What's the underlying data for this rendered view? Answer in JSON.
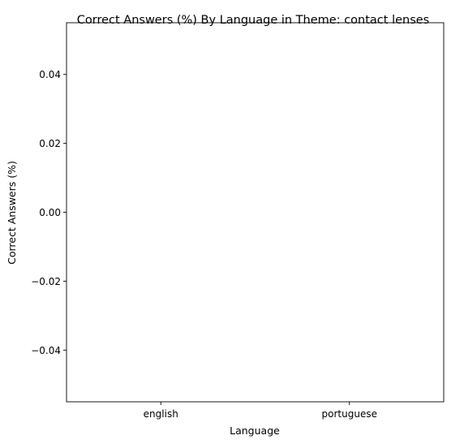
{
  "chart_data": {
    "type": "bar",
    "title": "Correct Answers (%) By Language in Theme: contact lenses",
    "xlabel": "Language",
    "ylabel": "Correct Answers (%)",
    "categories": [
      "english",
      "portuguese"
    ],
    "values": [
      0,
      0
    ],
    "ylim": [
      -0.055,
      0.055
    ],
    "yticks": [
      0.04,
      0.02,
      0.0,
      -0.02,
      -0.04
    ],
    "ytick_labels": [
      "0.04",
      "0.02",
      "0.00",
      "−0.02",
      "−0.04"
    ],
    "grid": false,
    "legend": "none"
  }
}
